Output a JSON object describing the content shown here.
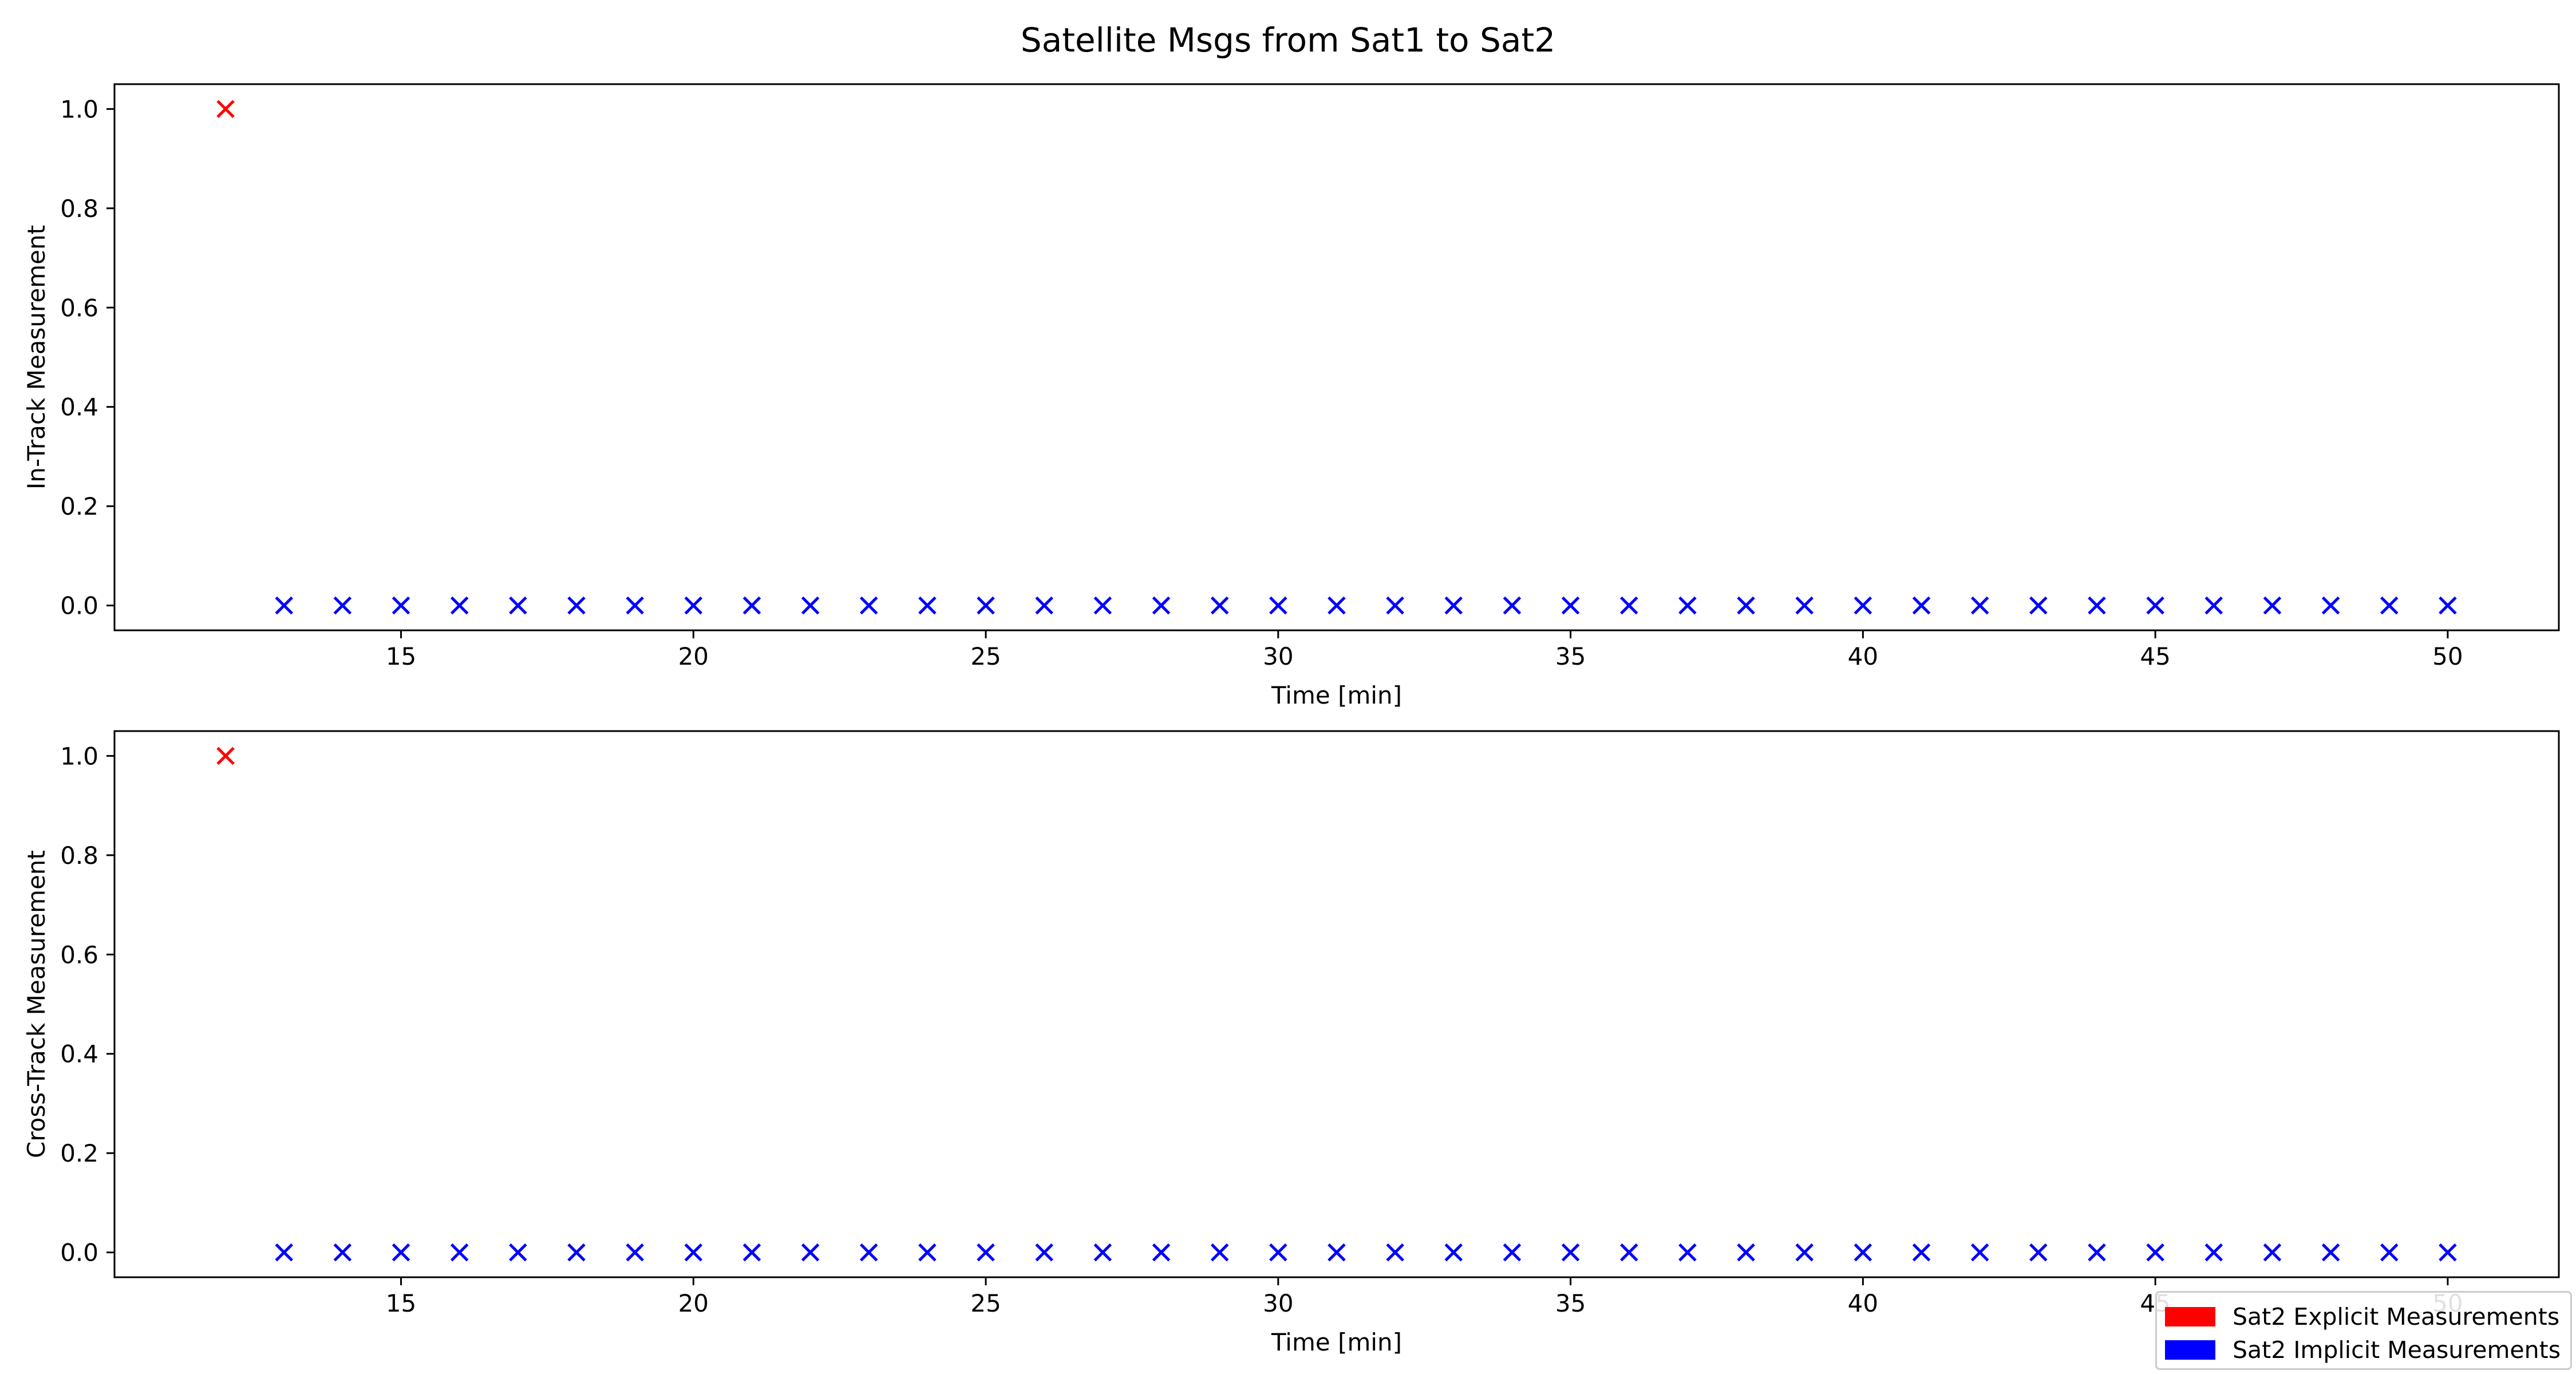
{
  "figure": {
    "title": "Satellite Msgs from Sat1 to Sat2"
  },
  "colors": {
    "explicit": "#ff0000",
    "implicit": "#0000ff"
  },
  "legend": {
    "position": "lower-right",
    "items": [
      {
        "label": "Sat2 Explicit Measurements",
        "color": "#ff0000"
      },
      {
        "label": "Sat2 Implicit Measurements",
        "color": "#0000ff"
      }
    ]
  },
  "chart_data": [
    {
      "type": "scatter",
      "xlabel": "Time [min]",
      "ylabel": "In-Track Measurement",
      "xlim": [
        10.1,
        51.9
      ],
      "ylim": [
        -0.05,
        1.05
      ],
      "xticks": [
        15,
        20,
        25,
        30,
        35,
        40,
        45,
        50
      ],
      "yticks": [
        0.0,
        0.2,
        0.4,
        0.6,
        0.8,
        1.0
      ],
      "marker": "x",
      "grid": false,
      "series": [
        {
          "name": "Sat2 Explicit Measurements",
          "color": "#ff0000",
          "points": [
            [
              12,
              1
            ]
          ]
        },
        {
          "name": "Sat2 Implicit Measurements",
          "color": "#0000ff",
          "points": [
            [
              13,
              0
            ],
            [
              14,
              0
            ],
            [
              15,
              0
            ],
            [
              16,
              0
            ],
            [
              17,
              0
            ],
            [
              18,
              0
            ],
            [
              19,
              0
            ],
            [
              20,
              0
            ],
            [
              21,
              0
            ],
            [
              22,
              0
            ],
            [
              23,
              0
            ],
            [
              24,
              0
            ],
            [
              25,
              0
            ],
            [
              26,
              0
            ],
            [
              27,
              0
            ],
            [
              28,
              0
            ],
            [
              29,
              0
            ],
            [
              30,
              0
            ],
            [
              31,
              0
            ],
            [
              32,
              0
            ],
            [
              33,
              0
            ],
            [
              34,
              0
            ],
            [
              35,
              0
            ],
            [
              36,
              0
            ],
            [
              37,
              0
            ],
            [
              38,
              0
            ],
            [
              39,
              0
            ],
            [
              40,
              0
            ],
            [
              41,
              0
            ],
            [
              42,
              0
            ],
            [
              43,
              0
            ],
            [
              44,
              0
            ],
            [
              45,
              0
            ],
            [
              46,
              0
            ],
            [
              47,
              0
            ],
            [
              48,
              0
            ],
            [
              49,
              0
            ],
            [
              50,
              0
            ]
          ]
        }
      ]
    },
    {
      "type": "scatter",
      "xlabel": "Time [min]",
      "ylabel": "Cross-Track Measurement",
      "xlim": [
        10.1,
        51.9
      ],
      "ylim": [
        -0.05,
        1.05
      ],
      "xticks": [
        15,
        20,
        25,
        30,
        35,
        40,
        45,
        50
      ],
      "yticks": [
        0.0,
        0.2,
        0.4,
        0.6,
        0.8,
        1.0
      ],
      "marker": "x",
      "grid": false,
      "series": [
        {
          "name": "Sat2 Explicit Measurements",
          "color": "#ff0000",
          "points": [
            [
              12,
              1
            ]
          ]
        },
        {
          "name": "Sat2 Implicit Measurements",
          "color": "#0000ff",
          "points": [
            [
              13,
              0
            ],
            [
              14,
              0
            ],
            [
              15,
              0
            ],
            [
              16,
              0
            ],
            [
              17,
              0
            ],
            [
              18,
              0
            ],
            [
              19,
              0
            ],
            [
              20,
              0
            ],
            [
              21,
              0
            ],
            [
              22,
              0
            ],
            [
              23,
              0
            ],
            [
              24,
              0
            ],
            [
              25,
              0
            ],
            [
              26,
              0
            ],
            [
              27,
              0
            ],
            [
              28,
              0
            ],
            [
              29,
              0
            ],
            [
              30,
              0
            ],
            [
              31,
              0
            ],
            [
              32,
              0
            ],
            [
              33,
              0
            ],
            [
              34,
              0
            ],
            [
              35,
              0
            ],
            [
              36,
              0
            ],
            [
              37,
              0
            ],
            [
              38,
              0
            ],
            [
              39,
              0
            ],
            [
              40,
              0
            ],
            [
              41,
              0
            ],
            [
              42,
              0
            ],
            [
              43,
              0
            ],
            [
              44,
              0
            ],
            [
              45,
              0
            ],
            [
              46,
              0
            ],
            [
              47,
              0
            ],
            [
              48,
              0
            ],
            [
              49,
              0
            ],
            [
              50,
              0
            ]
          ]
        }
      ]
    }
  ]
}
